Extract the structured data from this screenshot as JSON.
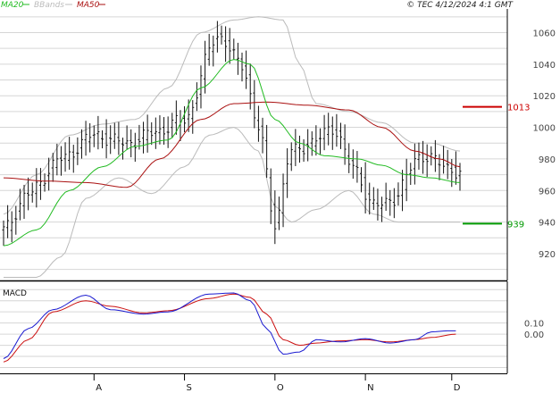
{
  "header": {
    "timestamp": "© TEC 4/12/2024 4:1 GMT"
  },
  "colors": {
    "ma20": "#22bb22",
    "bbands": "#bbbbbb",
    "ma50": "#aa1111",
    "price": "#111111",
    "macd": "#1a1ad0",
    "signal": "#cc1111",
    "grid": "#d6d6d6",
    "resistance": "#cc0000",
    "support": "#009900"
  },
  "chart_data": [
    {
      "type": "line",
      "panel": "price",
      "legend": [
        "MA20",
        "BBands",
        "MA50"
      ],
      "legend_placement": "top-left",
      "grid": true,
      "ylim": [
        903,
        1075
      ],
      "y_ticks": [
        920,
        940,
        960,
        980,
        1000,
        1020,
        1040,
        1060
      ],
      "months": [
        "A",
        "S",
        "O",
        "N",
        "D"
      ],
      "month_positions": [
        22,
        44,
        66,
        88,
        109
      ],
      "n_days": 112,
      "levels": [
        {
          "name": "resistance",
          "label": "1013",
          "value": 1013
        },
        {
          "name": "support",
          "label": "939",
          "value": 939
        }
      ],
      "close_anchors": [
        [
          0,
          935
        ],
        [
          6,
          958
        ],
        [
          14,
          980
        ],
        [
          22,
          995
        ],
        [
          30,
          990
        ],
        [
          38,
          998
        ],
        [
          44,
          1005
        ],
        [
          52,
          1058
        ],
        [
          58,
          1040
        ],
        [
          62,
          1000
        ],
        [
          66,
          940
        ],
        [
          70,
          985
        ],
        [
          75,
          990
        ],
        [
          80,
          1000
        ],
        [
          85,
          975
        ],
        [
          90,
          950
        ],
        [
          95,
          955
        ],
        [
          101,
          982
        ],
        [
          106,
          978
        ],
        [
          111,
          970
        ]
      ],
      "ma20_anchors": [
        [
          0,
          925
        ],
        [
          8,
          935
        ],
        [
          16,
          960
        ],
        [
          24,
          975
        ],
        [
          32,
          988
        ],
        [
          40,
          992
        ],
        [
          48,
          1025
        ],
        [
          56,
          1043
        ],
        [
          60,
          1040
        ],
        [
          66,
          1005
        ],
        [
          72,
          990
        ],
        [
          78,
          982
        ],
        [
          86,
          980
        ],
        [
          92,
          976
        ],
        [
          98,
          970
        ],
        [
          104,
          968
        ],
        [
          111,
          965
        ]
      ],
      "ma50_anchors": [
        [
          0,
          968
        ],
        [
          10,
          966
        ],
        [
          20,
          965
        ],
        [
          30,
          962
        ],
        [
          38,
          980
        ],
        [
          48,
          1005
        ],
        [
          56,
          1015
        ],
        [
          64,
          1016
        ],
        [
          74,
          1014
        ],
        [
          84,
          1011
        ],
        [
          92,
          1000
        ],
        [
          100,
          985
        ],
        [
          106,
          980
        ],
        [
          111,
          975
        ]
      ],
      "bb_upper_anchors": [
        [
          0,
          945
        ],
        [
          8,
          970
        ],
        [
          16,
          995
        ],
        [
          24,
          1002
        ],
        [
          32,
          1005
        ],
        [
          40,
          1025
        ],
        [
          48,
          1060
        ],
        [
          56,
          1068
        ],
        [
          62,
          1070
        ],
        [
          68,
          1068
        ],
        [
          72,
          1040
        ],
        [
          76,
          1015
        ],
        [
          84,
          1010
        ],
        [
          92,
          1003
        ],
        [
          100,
          990
        ],
        [
          104,
          990
        ],
        [
          111,
          985
        ]
      ],
      "bb_lower_anchors": [
        [
          0,
          905
        ],
        [
          8,
          905
        ],
        [
          14,
          918
        ],
        [
          20,
          955
        ],
        [
          28,
          968
        ],
        [
          36,
          958
        ],
        [
          44,
          975
        ],
        [
          50,
          995
        ],
        [
          56,
          1000
        ],
        [
          62,
          985
        ],
        [
          66,
          950
        ],
        [
          70,
          940
        ],
        [
          76,
          948
        ],
        [
          84,
          960
        ],
        [
          90,
          945
        ],
        [
          96,
          940
        ],
        [
          102,
          940
        ],
        [
          111,
          940
        ]
      ]
    },
    {
      "type": "line",
      "panel": "macd",
      "title": "MACD",
      "ylim": [
        -0.32,
        0.45
      ],
      "y_ticks": [
        0.0,
        0.1
      ],
      "y_tick_labels": [
        "0.00",
        "0.10"
      ],
      "macd_anchors": [
        [
          0,
          -0.22
        ],
        [
          6,
          0.05
        ],
        [
          12,
          0.22
        ],
        [
          20,
          0.35
        ],
        [
          26,
          0.22
        ],
        [
          34,
          0.18
        ],
        [
          40,
          0.2
        ],
        [
          50,
          0.36
        ],
        [
          56,
          0.37
        ],
        [
          60,
          0.3
        ],
        [
          64,
          0.05
        ],
        [
          68,
          -0.18
        ],
        [
          72,
          -0.16
        ],
        [
          76,
          -0.05
        ],
        [
          82,
          -0.07
        ],
        [
          88,
          -0.04
        ],
        [
          94,
          -0.08
        ],
        [
          100,
          -0.05
        ],
        [
          104,
          0.02
        ],
        [
          108,
          0.03
        ]
      ],
      "signal_anchors": [
        [
          0,
          -0.25
        ],
        [
          6,
          -0.05
        ],
        [
          12,
          0.2
        ],
        [
          20,
          0.3
        ],
        [
          26,
          0.25
        ],
        [
          34,
          0.19
        ],
        [
          40,
          0.21
        ],
        [
          50,
          0.32
        ],
        [
          56,
          0.36
        ],
        [
          60,
          0.33
        ],
        [
          64,
          0.18
        ],
        [
          68,
          -0.05
        ],
        [
          72,
          -0.1
        ],
        [
          76,
          -0.08
        ],
        [
          82,
          -0.06
        ],
        [
          88,
          -0.05
        ],
        [
          94,
          -0.07
        ],
        [
          100,
          -0.05
        ],
        [
          104,
          -0.03
        ],
        [
          110,
          0.0
        ]
      ]
    }
  ]
}
